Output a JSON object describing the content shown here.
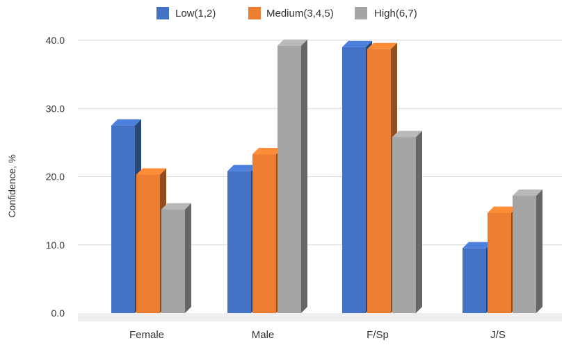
{
  "chart_data": {
    "type": "bar",
    "style": "3d-clustered-column",
    "categories": [
      "Female",
      "Male",
      "F/Sp",
      "J/S"
    ],
    "series": [
      {
        "name": "Low(1,2)",
        "color": "#4472c4",
        "values": [
          27.5,
          20.8,
          39.0,
          9.5
        ]
      },
      {
        "name": "Medium(3,4,5)",
        "color": "#ed7d31",
        "values": [
          20.3,
          23.3,
          38.7,
          14.7
        ]
      },
      {
        "name": "High(6,7)",
        "color": "#a5a5a5",
        "values": [
          15.2,
          39.2,
          25.8,
          17.2
        ]
      }
    ],
    "ylabel": "Confidence, %",
    "ylim": [
      0,
      40
    ],
    "yticks": [
      "0.0",
      "10.0",
      "20.0",
      "30.0",
      "40.0"
    ],
    "grid": true,
    "legend_position": "top"
  }
}
